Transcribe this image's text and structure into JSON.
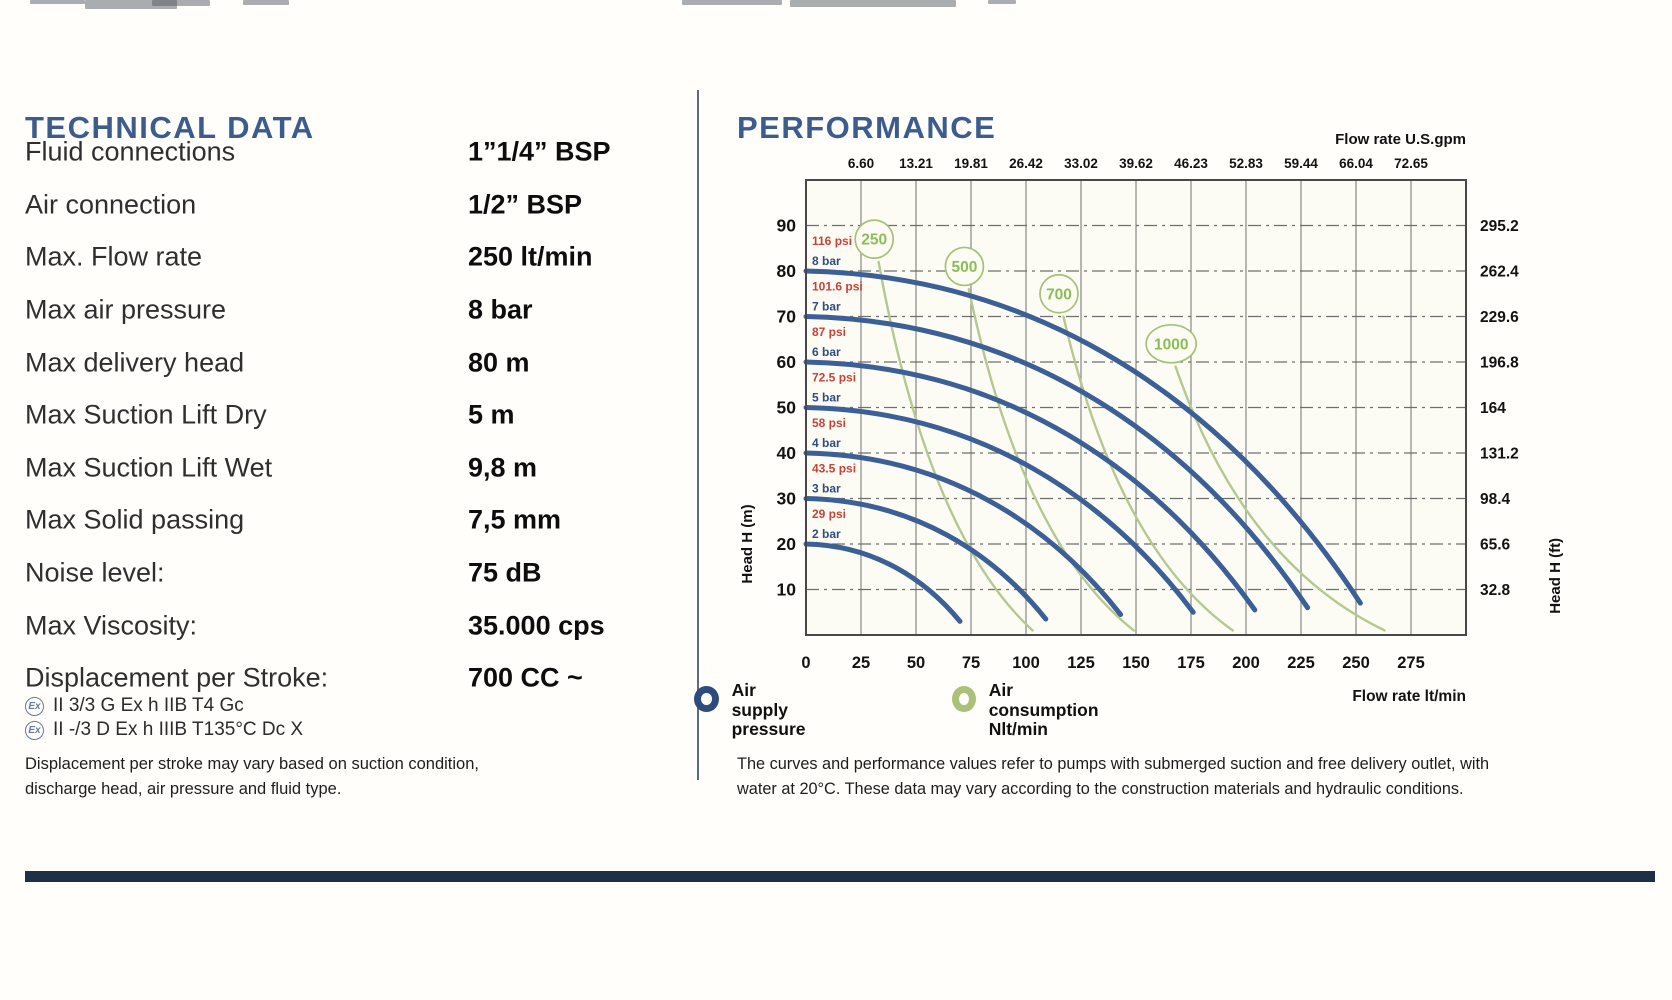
{
  "left": {
    "title": "TECHNICAL DATA",
    "specs": [
      {
        "label": "Fluid connections",
        "value": "1”1/4” BSP"
      },
      {
        "label": "Air connection",
        "value": "1/2” BSP"
      },
      {
        "label": "Max. Flow rate",
        "value": "250 lt/min"
      },
      {
        "label": "Max air pressure",
        "value": "8 bar"
      },
      {
        "label": "Max delivery head",
        "value": "80 m"
      },
      {
        "label": "Max Suction Lift Dry",
        "value": "5 m"
      },
      {
        "label": "Max Suction Lift Wet",
        "value": "9,8 m"
      },
      {
        "label": "Max Solid passing",
        "value": "7,5 mm"
      },
      {
        "label": "Noise level:",
        "value": "75 dB"
      },
      {
        "label": "Max Viscosity:",
        "value": "35.000 cps"
      },
      {
        "label": "Displacement per Stroke:",
        "value": "700 CC ~"
      }
    ],
    "atex_lines": [
      "II 3/3 G Ex h IIB T4 Gc",
      "II -/3 D Ex h IIIB T135°C Dc X"
    ],
    "note_lines": [
      "Displacement per stroke may vary based on suction condition,",
      "discharge head, air pressure and fluid type."
    ]
  },
  "right": {
    "title": "PERFORMANCE",
    "note_lines": [
      "The curves and performance values refer to pumps with submerged suction and free delivery outlet, with",
      "water at 20°C. These data may vary according to the construction materials and hydraulic conditions."
    ]
  },
  "legend": [
    {
      "lines": "Air supply\npressure",
      "color": "#2d4b7d"
    },
    {
      "lines": "Air consumption\nNlt/min",
      "color": "#a9c178"
    }
  ],
  "chart_data": {
    "type": "line",
    "title": "PERFORMANCE",
    "grid": "on",
    "x_axis_bottom": {
      "label": "Flow rate  lt/min",
      "ticks": [
        0,
        25,
        50,
        75,
        100,
        125,
        150,
        175,
        200,
        225,
        250,
        275
      ],
      "range": [
        0,
        300
      ]
    },
    "x_axis_top": {
      "label": "Flow rate U.S.gpm",
      "tick_labels": [
        "6.60",
        "13.21",
        "19.81",
        "26.42",
        "33.02",
        "39.62",
        "46.23",
        "52.83",
        "59.44",
        "66.04",
        "72.65"
      ],
      "tick_flows": [
        25,
        50,
        75,
        100,
        125,
        150,
        175,
        200,
        225,
        250,
        275
      ]
    },
    "y_axis_left": {
      "label": "Head H (m)",
      "ticks": [
        90,
        80,
        70,
        60,
        50,
        40,
        30,
        20,
        10
      ],
      "range": [
        0,
        100
      ],
      "gridline_style": "dash-dot"
    },
    "y_axis_right": {
      "label": "Head H (ft)",
      "tick_labels": [
        "295.2",
        "262.4",
        "229.6",
        "196.8",
        "164",
        "131.2",
        "98.4",
        "65.6",
        "32.8"
      ],
      "tick_heads_m": [
        90,
        80,
        70,
        60,
        50,
        40,
        30,
        20,
        10
      ]
    },
    "series_air_supply_pressure": [
      {
        "psi_label": "116 psi",
        "bar_label": "8 bar",
        "start": [
          0,
          80
        ],
        "end": [
          252,
          7
        ]
      },
      {
        "psi_label": "101.6 psi",
        "bar_label": "7 bar",
        "start": [
          0,
          70
        ],
        "end": [
          228,
          6
        ]
      },
      {
        "psi_label": "87 psi",
        "bar_label": "6 bar",
        "start": [
          0,
          60
        ],
        "end": [
          204,
          5.5
        ]
      },
      {
        "psi_label": "72.5 psi",
        "bar_label": "5 bar",
        "start": [
          0,
          50
        ],
        "end": [
          176,
          5
        ]
      },
      {
        "psi_label": "58 psi",
        "bar_label": "4 bar",
        "start": [
          0,
          40
        ],
        "end": [
          143,
          4.5
        ]
      },
      {
        "psi_label": "43.5 psi",
        "bar_label": "3 bar",
        "start": [
          0,
          30
        ],
        "end": [
          109,
          3.5
        ]
      },
      {
        "psi_label": "29 psi",
        "bar_label": "2 bar",
        "start": [
          0,
          20
        ],
        "end": [
          70,
          3
        ]
      }
    ],
    "series_air_consumption_nlt_min": [
      {
        "label": "250",
        "circle_at": [
          31,
          87
        ],
        "curve_end": [
          103,
          1
        ]
      },
      {
        "label": "500",
        "circle_at": [
          72,
          81
        ],
        "curve_end": [
          149,
          1
        ]
      },
      {
        "label": "700",
        "circle_at": [
          115,
          75
        ],
        "curve_end": [
          194,
          1
        ]
      },
      {
        "label": "1000",
        "circle_at": [
          166,
          64
        ],
        "curve_end": [
          263,
          1
        ]
      }
    ],
    "colors": {
      "air_supply_curve": "#3c5f96",
      "air_consumption_curve": "#b5c88f",
      "marker_text": "#8bbd56",
      "marker_stroke": "#a6c077",
      "psi_text": "#c2443b",
      "bar_text": "#2f4d7e"
    }
  }
}
